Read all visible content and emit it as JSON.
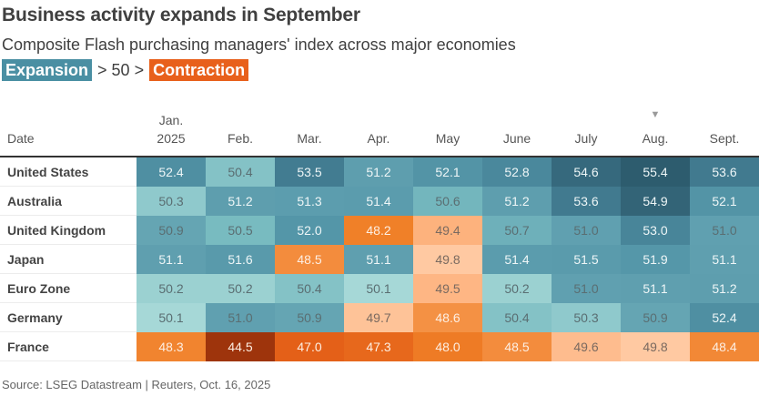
{
  "title": "Business activity expands in September",
  "subtitle": "Composite Flash purchasing managers' index across major economies",
  "legend": {
    "expansion_label": "Expansion",
    "middle_text": "> 50 >",
    "contraction_label": "Contraction",
    "expansion_color": "#4a8fa3",
    "contraction_color": "#e8601b"
  },
  "source": "Source: LSEG Datastream | Reuters, Oct. 16, 2025",
  "chart_data": {
    "type": "heatmap",
    "title": "Business activity expands in September",
    "subtitle": "Composite Flash purchasing managers' index across major economies",
    "row_header": "Date",
    "columns": [
      {
        "line1": "Jan.",
        "line2": "2025"
      },
      {
        "line1": "",
        "line2": "Feb."
      },
      {
        "line1": "",
        "line2": "Mar."
      },
      {
        "line1": "",
        "line2": "Apr."
      },
      {
        "line1": "",
        "line2": "May"
      },
      {
        "line1": "",
        "line2": "June"
      },
      {
        "line1": "",
        "line2": "July"
      },
      {
        "line1": "",
        "line2": "Aug."
      },
      {
        "line1": "",
        "line2": "Sept."
      }
    ],
    "marked_column": "Aug.",
    "marker_glyph": "▼",
    "threshold": 50,
    "rows": [
      {
        "name": "United States",
        "values": [
          52.4,
          50.4,
          53.5,
          51.2,
          52.1,
          52.8,
          54.6,
          55.4,
          53.6
        ]
      },
      {
        "name": "Australia",
        "values": [
          50.3,
          51.2,
          51.3,
          51.4,
          50.6,
          51.2,
          53.6,
          54.9,
          52.1
        ]
      },
      {
        "name": "United Kingdom",
        "values": [
          50.9,
          50.5,
          52.0,
          48.2,
          49.4,
          50.7,
          51.0,
          53.0,
          51.0
        ]
      },
      {
        "name": "Japan",
        "values": [
          51.1,
          51.6,
          48.5,
          51.1,
          49.8,
          51.4,
          51.5,
          51.9,
          51.1
        ]
      },
      {
        "name": "Euro Zone",
        "values": [
          50.2,
          50.2,
          50.4,
          50.1,
          49.5,
          50.2,
          51.0,
          51.1,
          51.2
        ]
      },
      {
        "name": "Germany",
        "values": [
          50.1,
          51.0,
          50.9,
          49.7,
          48.6,
          50.4,
          50.3,
          50.9,
          52.4
        ]
      },
      {
        "name": "France",
        "values": [
          48.3,
          44.5,
          47.0,
          47.3,
          48.0,
          48.5,
          49.6,
          49.8,
          48.4
        ]
      }
    ]
  }
}
